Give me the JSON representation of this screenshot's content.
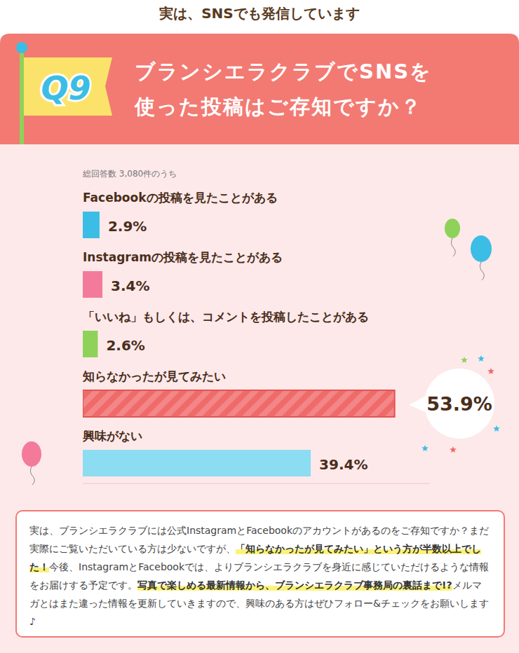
{
  "header": {
    "text": "実は、SNSでも発信しています"
  },
  "question": {
    "badge": "Q9",
    "lines": [
      "ブランシエラクラブでSNSを",
      "使った投稿はご存知ですか？"
    ]
  },
  "chart_data": {
    "type": "bar",
    "orientation": "horizontal",
    "subtitle": "総回答数 3,080件のうち",
    "categories": [
      "Facebookの投稿を見たことがある",
      "Instagramの投稿を見たことがある",
      "「いいね」もしくは、コメントを投稿したことがある",
      "知らなかったが見てみたい",
      "興味がない"
    ],
    "values": [
      2.9,
      3.4,
      2.6,
      53.9,
      39.4
    ],
    "value_labels": [
      "2.9%",
      "3.4%",
      "2.6%",
      "53.9%",
      "39.4%"
    ],
    "colors": [
      "#3bbde6",
      "#f47a9c",
      "#8ed25a",
      "#f06a6a",
      "#8cdcf2"
    ],
    "xlim": [
      0,
      60
    ],
    "data_labels": true,
    "tick_labels": false,
    "grid": false
  },
  "note": {
    "segments": [
      {
        "text": "実は、ブランシエラクラブには公式InstagramとFacebookのアカウントがあるのをご存知ですか？まだ実際にご覧いただいている方は少ないですが、",
        "highlight": false
      },
      {
        "text": "「知らなかったが見てみたい」という方が半数以上でした！",
        "highlight": true
      },
      {
        "text": "今後、InstagramとFacebookでは、よりブランシエラクラブを身近に感じていただけるような情報をお届けする予定です。",
        "highlight": false
      },
      {
        "text": "写真で楽しめる最新情報から、ブランシエラクラブ事務局の裏話まで!?",
        "highlight": true
      },
      {
        "text": "メルマガとはまた違った情報を更新していきますので、興味のある方はぜひフォロー&チェックをお願いします♪",
        "highlight": false
      }
    ]
  }
}
